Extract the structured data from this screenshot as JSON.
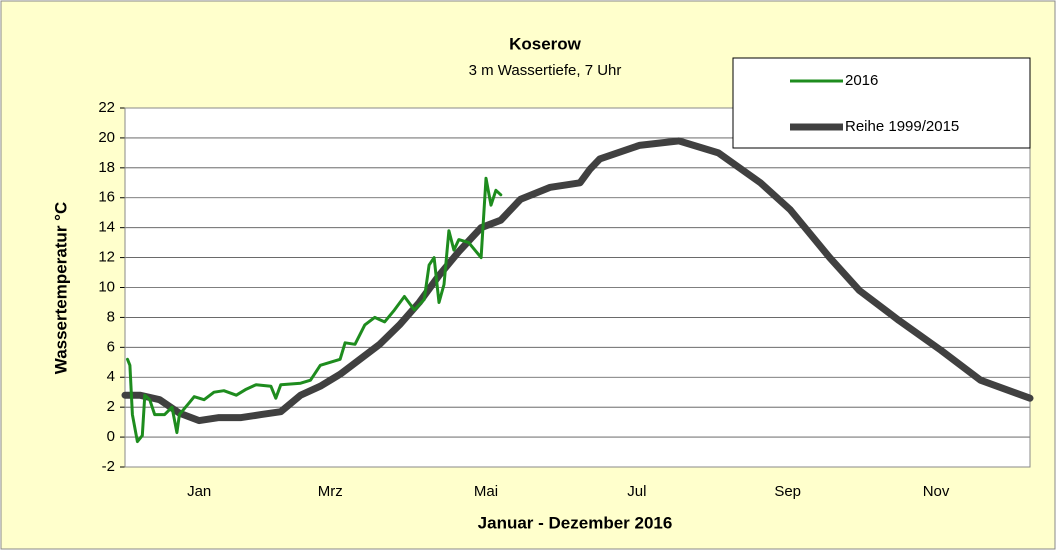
{
  "chart_data": {
    "type": "line",
    "title": "Koserow",
    "subtitle": "3 m Wassertiefe, 7 Uhr",
    "x_label": "Januar - Dezember 2016",
    "y_label": "Wassertemperatur °C",
    "xlim": [
      0,
      366
    ],
    "xticks": [
      {
        "value": 30,
        "label": "Jan"
      },
      {
        "value": 83,
        "label": "Mrz"
      },
      {
        "value": 146,
        "label": "Mai"
      },
      {
        "value": 207,
        "label": "Jul"
      },
      {
        "value": 268,
        "label": "Sep"
      },
      {
        "value": 328,
        "label": "Nov"
      }
    ],
    "ylim": [
      -2,
      22
    ],
    "yticks": [
      -2,
      0,
      2,
      4,
      6,
      8,
      10,
      12,
      14,
      16,
      18,
      20,
      22
    ],
    "grid": true,
    "legend": "top-right",
    "series": [
      {
        "name": "2016",
        "color": "#1e8c1e",
        "x": [
          1,
          2,
          3,
          5,
          7,
          8,
          10,
          12,
          16,
          19,
          21,
          22,
          26,
          28,
          32,
          36,
          40,
          45,
          49,
          53,
          59,
          61,
          63,
          71,
          75,
          79,
          87,
          89,
          93,
          97,
          101,
          105,
          109,
          113,
          117,
          121,
          123,
          125,
          127,
          129,
          131,
          133,
          135,
          139,
          144,
          146,
          148,
          150,
          152
        ],
        "values": [
          5.2,
          4.8,
          1.5,
          -0.3,
          0.1,
          2.8,
          2.5,
          1.5,
          1.5,
          2.0,
          0.3,
          1.5,
          2.3,
          2.7,
          2.5,
          3.0,
          3.1,
          2.8,
          3.2,
          3.5,
          3.4,
          2.6,
          3.5,
          3.6,
          3.8,
          4.8,
          5.2,
          6.3,
          6.2,
          7.5,
          8.0,
          7.7,
          8.5,
          9.4,
          8.5,
          9.2,
          11.5,
          12.0,
          9.0,
          10.2,
          13.8,
          12.5,
          13.2,
          13.0,
          12.0,
          17.3,
          15.5,
          16.5,
          16.2
        ]
      },
      {
        "name": "Reihe 1999/2015",
        "color": "#404040",
        "x": [
          0,
          6,
          14,
          22,
          30,
          38,
          47,
          55,
          63,
          71,
          79,
          87,
          95,
          103,
          111,
          119,
          127,
          135,
          144,
          152,
          160,
          172,
          184,
          188,
          192,
          208,
          224,
          240,
          257,
          269,
          285,
          297,
          313,
          330,
          346,
          366
        ],
        "values": [
          2.8,
          2.8,
          2.5,
          1.6,
          1.1,
          1.3,
          1.3,
          1.5,
          1.7,
          2.8,
          3.4,
          4.2,
          5.2,
          6.2,
          7.5,
          9.0,
          10.8,
          12.4,
          14.0,
          14.5,
          15.9,
          16.7,
          17.0,
          17.9,
          18.6,
          19.5,
          19.8,
          19.0,
          17.0,
          15.2,
          12.0,
          9.8,
          7.8,
          5.8,
          3.8,
          2.6
        ]
      }
    ]
  }
}
